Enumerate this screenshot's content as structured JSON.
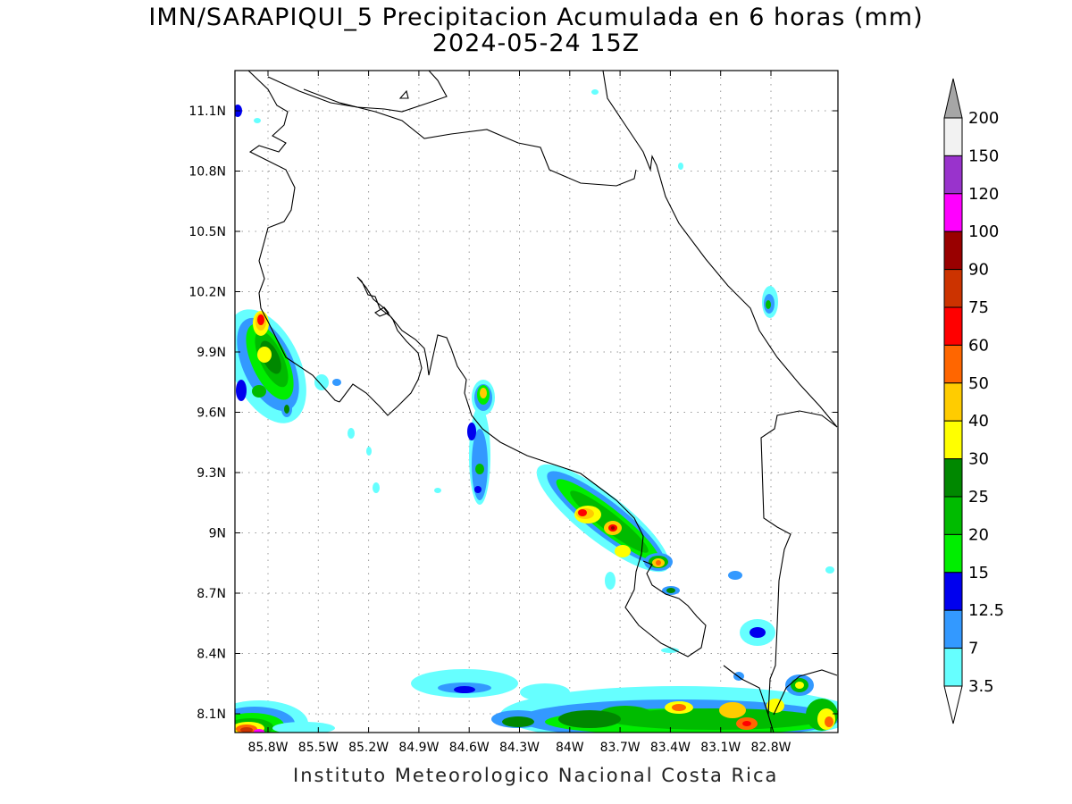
{
  "map": {
    "title_line1": "IMN/SARAPIQUI_5 Precipitacion Acumulada en 6 horas (mm)",
    "title_line2": "2024-05-24 15Z",
    "credit": "Instituto Meteorologico Nacional Costa Rica",
    "lon_ticks": [
      "85.8W",
      "85.5W",
      "85.2W",
      "84.9W",
      "84.6W",
      "84.3W",
      "84W",
      "83.7W",
      "83.4W",
      "83.1W",
      "82.8W"
    ],
    "lat_ticks": [
      "11.1N",
      "10.8N",
      "10.5N",
      "10.2N",
      "9.9N",
      "9.6N",
      "9.3N",
      "9N",
      "8.7N",
      "8.4N",
      "8.1N"
    ],
    "grid": true
  },
  "legend": {
    "levels": [
      "3.5",
      "7",
      "12.5",
      "15",
      "20",
      "25",
      "30",
      "40",
      "50",
      "60",
      "75",
      "90",
      "100",
      "120",
      "150",
      "200"
    ],
    "colors": [
      "#66ffff",
      "#3399ff",
      "#0000ee",
      "#00ee00",
      "#00bb00",
      "#008800",
      "#ffff00",
      "#ffcc00",
      "#ff6600",
      "#ff0000",
      "#cc3300",
      "#990000",
      "#ff00ff",
      "#9933cc",
      "#f2f2f2"
    ],
    "over_color": "#a6a6a6"
  }
}
